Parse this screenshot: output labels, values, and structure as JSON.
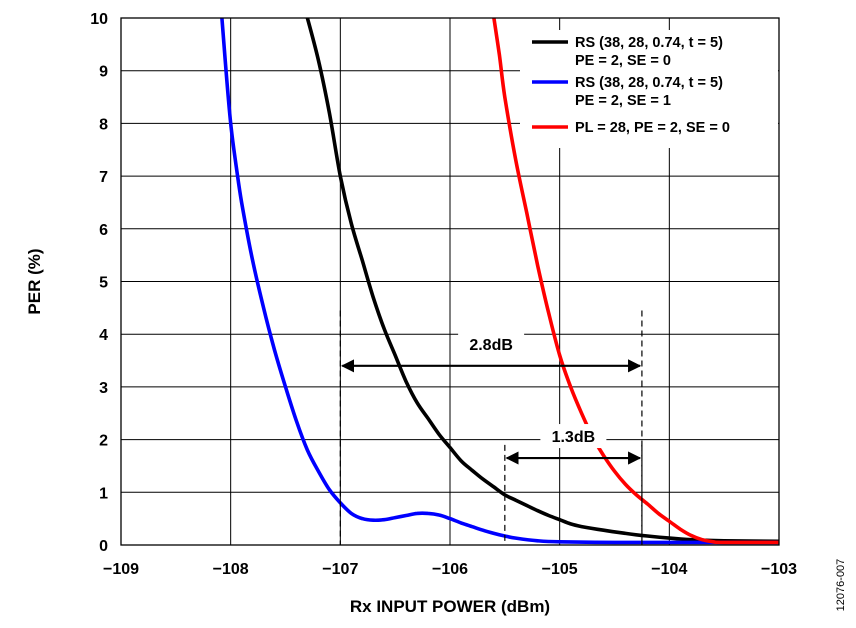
{
  "chart_data": {
    "type": "line",
    "xlabel": "Rx INPUT POWER (dBm)",
    "ylabel": "PER (%)",
    "xlim": [
      -109,
      -103
    ],
    "ylim": [
      0,
      10
    ],
    "x_ticks": [
      -109,
      -108,
      -107,
      -106,
      -105,
      -104,
      -103
    ],
    "x_tick_labels": [
      "−109",
      "−108",
      "−107",
      "−106",
      "−105",
      "−104",
      "−103"
    ],
    "y_ticks": [
      0,
      1,
      2,
      3,
      4,
      5,
      6,
      7,
      8,
      9,
      10
    ],
    "y_tick_labels": [
      "0",
      "1",
      "2",
      "3",
      "4",
      "5",
      "6",
      "7",
      "8",
      "9",
      "10"
    ],
    "grid": true,
    "legend_position": "top-right",
    "series": [
      {
        "name": "RS (38, 28, 0.74, t = 5)",
        "name_line2": "PE = 2, SE = 0",
        "color": "#000000",
        "points": [
          [
            -107.3,
            10
          ],
          [
            -107.2,
            9.2
          ],
          [
            -107.1,
            8.2
          ],
          [
            -107.0,
            7.0
          ],
          [
            -106.9,
            6.1
          ],
          [
            -106.8,
            5.4
          ],
          [
            -106.7,
            4.7
          ],
          [
            -106.6,
            4.1
          ],
          [
            -106.5,
            3.6
          ],
          [
            -106.4,
            3.1
          ],
          [
            -106.3,
            2.7
          ],
          [
            -106.2,
            2.4
          ],
          [
            -106.1,
            2.1
          ],
          [
            -106.0,
            1.85
          ],
          [
            -105.9,
            1.6
          ],
          [
            -105.8,
            1.42
          ],
          [
            -105.7,
            1.25
          ],
          [
            -105.6,
            1.1
          ],
          [
            -105.5,
            0.95
          ],
          [
            -105.4,
            0.85
          ],
          [
            -105.3,
            0.75
          ],
          [
            -105.2,
            0.65
          ],
          [
            -105.1,
            0.56
          ],
          [
            -105.0,
            0.48
          ],
          [
            -104.9,
            0.4
          ],
          [
            -104.8,
            0.35
          ],
          [
            -104.6,
            0.28
          ],
          [
            -104.4,
            0.22
          ],
          [
            -104.2,
            0.17
          ],
          [
            -104.0,
            0.13
          ],
          [
            -103.8,
            0.1
          ],
          [
            -103.5,
            0.08
          ],
          [
            -103.0,
            0.07
          ]
        ]
      },
      {
        "name": "RS (38, 28, 0.74, t = 5)",
        "name_line2": "PE = 2, SE = 1",
        "color": "#0000ff",
        "points": [
          [
            -108.08,
            10
          ],
          [
            -108.05,
            9.2
          ],
          [
            -108.0,
            8.0
          ],
          [
            -107.95,
            7.2
          ],
          [
            -107.9,
            6.5
          ],
          [
            -107.8,
            5.4
          ],
          [
            -107.7,
            4.5
          ],
          [
            -107.6,
            3.7
          ],
          [
            -107.5,
            3.0
          ],
          [
            -107.4,
            2.35
          ],
          [
            -107.3,
            1.8
          ],
          [
            -107.2,
            1.4
          ],
          [
            -107.1,
            1.05
          ],
          [
            -107.0,
            0.8
          ],
          [
            -106.9,
            0.6
          ],
          [
            -106.8,
            0.5
          ],
          [
            -106.7,
            0.47
          ],
          [
            -106.6,
            0.48
          ],
          [
            -106.5,
            0.52
          ],
          [
            -106.4,
            0.56
          ],
          [
            -106.3,
            0.6
          ],
          [
            -106.2,
            0.6
          ],
          [
            -106.1,
            0.57
          ],
          [
            -106.0,
            0.5
          ],
          [
            -105.9,
            0.42
          ],
          [
            -105.8,
            0.35
          ],
          [
            -105.7,
            0.28
          ],
          [
            -105.6,
            0.22
          ],
          [
            -105.5,
            0.17
          ],
          [
            -105.4,
            0.13
          ],
          [
            -105.2,
            0.08
          ],
          [
            -105.0,
            0.06
          ],
          [
            -104.5,
            0.05
          ],
          [
            -104.0,
            0.05
          ],
          [
            -103.0,
            0.05
          ]
        ]
      },
      {
        "name": "PL = 28, PE = 2, SE = 0",
        "color": "#ff0000",
        "points": [
          [
            -105.6,
            10
          ],
          [
            -105.55,
            9.3
          ],
          [
            -105.5,
            8.5
          ],
          [
            -105.4,
            7.3
          ],
          [
            -105.3,
            6.3
          ],
          [
            -105.2,
            5.3
          ],
          [
            -105.1,
            4.4
          ],
          [
            -105.0,
            3.6
          ],
          [
            -104.9,
            3.0
          ],
          [
            -104.8,
            2.5
          ],
          [
            -104.7,
            2.05
          ],
          [
            -104.6,
            1.7
          ],
          [
            -104.5,
            1.4
          ],
          [
            -104.4,
            1.15
          ],
          [
            -104.3,
            0.95
          ],
          [
            -104.2,
            0.78
          ],
          [
            -104.1,
            0.6
          ],
          [
            -104.0,
            0.45
          ],
          [
            -103.9,
            0.3
          ],
          [
            -103.8,
            0.18
          ],
          [
            -103.7,
            0.1
          ],
          [
            -103.6,
            0.06
          ],
          [
            -103.5,
            0.05
          ],
          [
            -103.0,
            0.05
          ]
        ]
      }
    ],
    "annotations": [
      {
        "label": "2.8dB",
        "x_start": -107.0,
        "x_end": -104.25,
        "y": 3.4,
        "dash_top": 4.45,
        "dash_bottom": 0
      },
      {
        "label": "1.3dB",
        "x_start": -105.5,
        "x_end": -104.25,
        "y": 1.65,
        "dash_top": 1.9,
        "dash_bottom": 0
      }
    ]
  },
  "figure_id": "12076-007"
}
